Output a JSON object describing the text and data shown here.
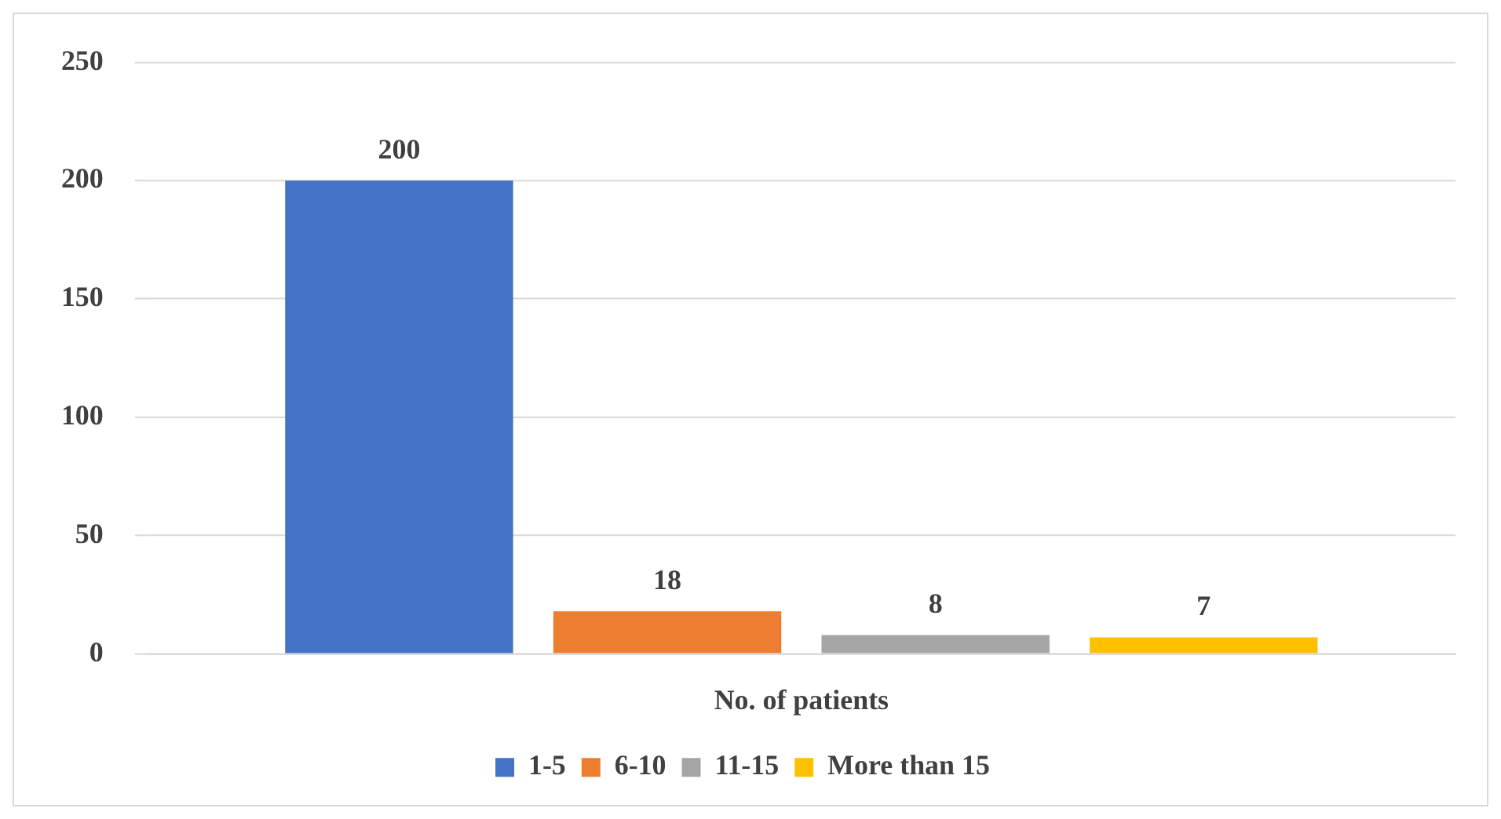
{
  "chart_data": {
    "type": "bar",
    "categories": [
      "No. of patients"
    ],
    "series": [
      {
        "name": "1-5",
        "color": "#4472c4",
        "values": [
          200
        ]
      },
      {
        "name": "6-10",
        "color": "#ed7d31",
        "values": [
          18
        ]
      },
      {
        "name": "11-15",
        "color": "#a5a5a5",
        "values": [
          8
        ]
      },
      {
        "name": "More than 15",
        "color": "#ffc000",
        "values": [
          7
        ]
      }
    ],
    "ylim": [
      0,
      250
    ],
    "yticks": [
      0,
      50,
      100,
      150,
      200,
      250
    ],
    "grid": "y",
    "legend": "bottom",
    "data_labels": true
  }
}
